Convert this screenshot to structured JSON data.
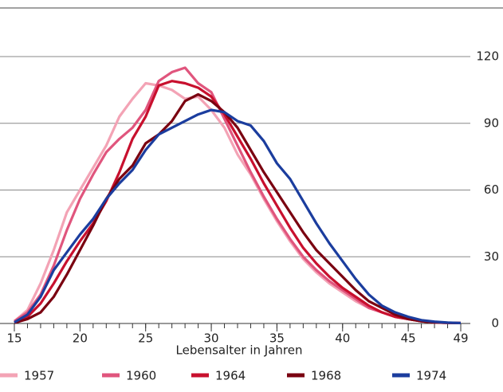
{
  "chart_data": {
    "type": "line",
    "x_label": "Lebensalter in Jahren",
    "x": [
      15,
      16,
      17,
      18,
      19,
      20,
      21,
      22,
      23,
      24,
      25,
      26,
      27,
      28,
      29,
      30,
      31,
      32,
      33,
      34,
      35,
      36,
      37,
      38,
      39,
      40,
      41,
      42,
      43,
      44,
      45,
      46,
      47,
      48,
      49
    ],
    "xlim": [
      15,
      49
    ],
    "xticks": [
      15,
      20,
      25,
      30,
      35,
      40,
      45,
      49
    ],
    "ylim": [
      0,
      120
    ],
    "yticks": [
      0,
      30,
      60,
      90,
      120
    ],
    "grid": true,
    "series": [
      {
        "name": "1957",
        "color": "#f3a3b5",
        "values": [
          1,
          6,
          18,
          33,
          50,
          60,
          70,
          80,
          93,
          101,
          108,
          107,
          105,
          101,
          102,
          96,
          88,
          76,
          67,
          56,
          46,
          37,
          29,
          23,
          18,
          14,
          10,
          7,
          5,
          3,
          2,
          1,
          0.5,
          0.3,
          0.2
        ]
      },
      {
        "name": "1960",
        "color": "#e0557d",
        "values": [
          1,
          5,
          13,
          26,
          42,
          56,
          67,
          77,
          83,
          88,
          96,
          109,
          113,
          115,
          108,
          104,
          92,
          80,
          68,
          57,
          47,
          38,
          30,
          24,
          19,
          15,
          11,
          7,
          5,
          3,
          2,
          1,
          0.5,
          0.3,
          0.2
        ]
      },
      {
        "name": "1964",
        "color": "#c8102e",
        "values": [
          0.5,
          3,
          9,
          18,
          28,
          37,
          45,
          55,
          68,
          83,
          93,
          107,
          109,
          108,
          106,
          102,
          94,
          84,
          74,
          63,
          53,
          43,
          34,
          27,
          21,
          16,
          12,
          8,
          5,
          3,
          2,
          1,
          0.5,
          0.3,
          0.2
        ]
      },
      {
        "name": "1968",
        "color": "#7a0010",
        "values": [
          0.3,
          2,
          5,
          12,
          22,
          33,
          44,
          56,
          65,
          71,
          81,
          85,
          91,
          100,
          103,
          100,
          95,
          88,
          78,
          68,
          59,
          50,
          41,
          33,
          27,
          21,
          15,
          10,
          7,
          4,
          2,
          1,
          0.5,
          0.3,
          0.2
        ]
      },
      {
        "name": "1974",
        "color": "#1b3d9e",
        "values": [
          0.5,
          4,
          12,
          24,
          32,
          40,
          47,
          56,
          63,
          69,
          78,
          85,
          88,
          91,
          94,
          96,
          95,
          91,
          89,
          82,
          72,
          65,
          55,
          45,
          36,
          28,
          20,
          13,
          8,
          5,
          3,
          1.5,
          0.8,
          0.4,
          0.2
        ]
      }
    ]
  }
}
